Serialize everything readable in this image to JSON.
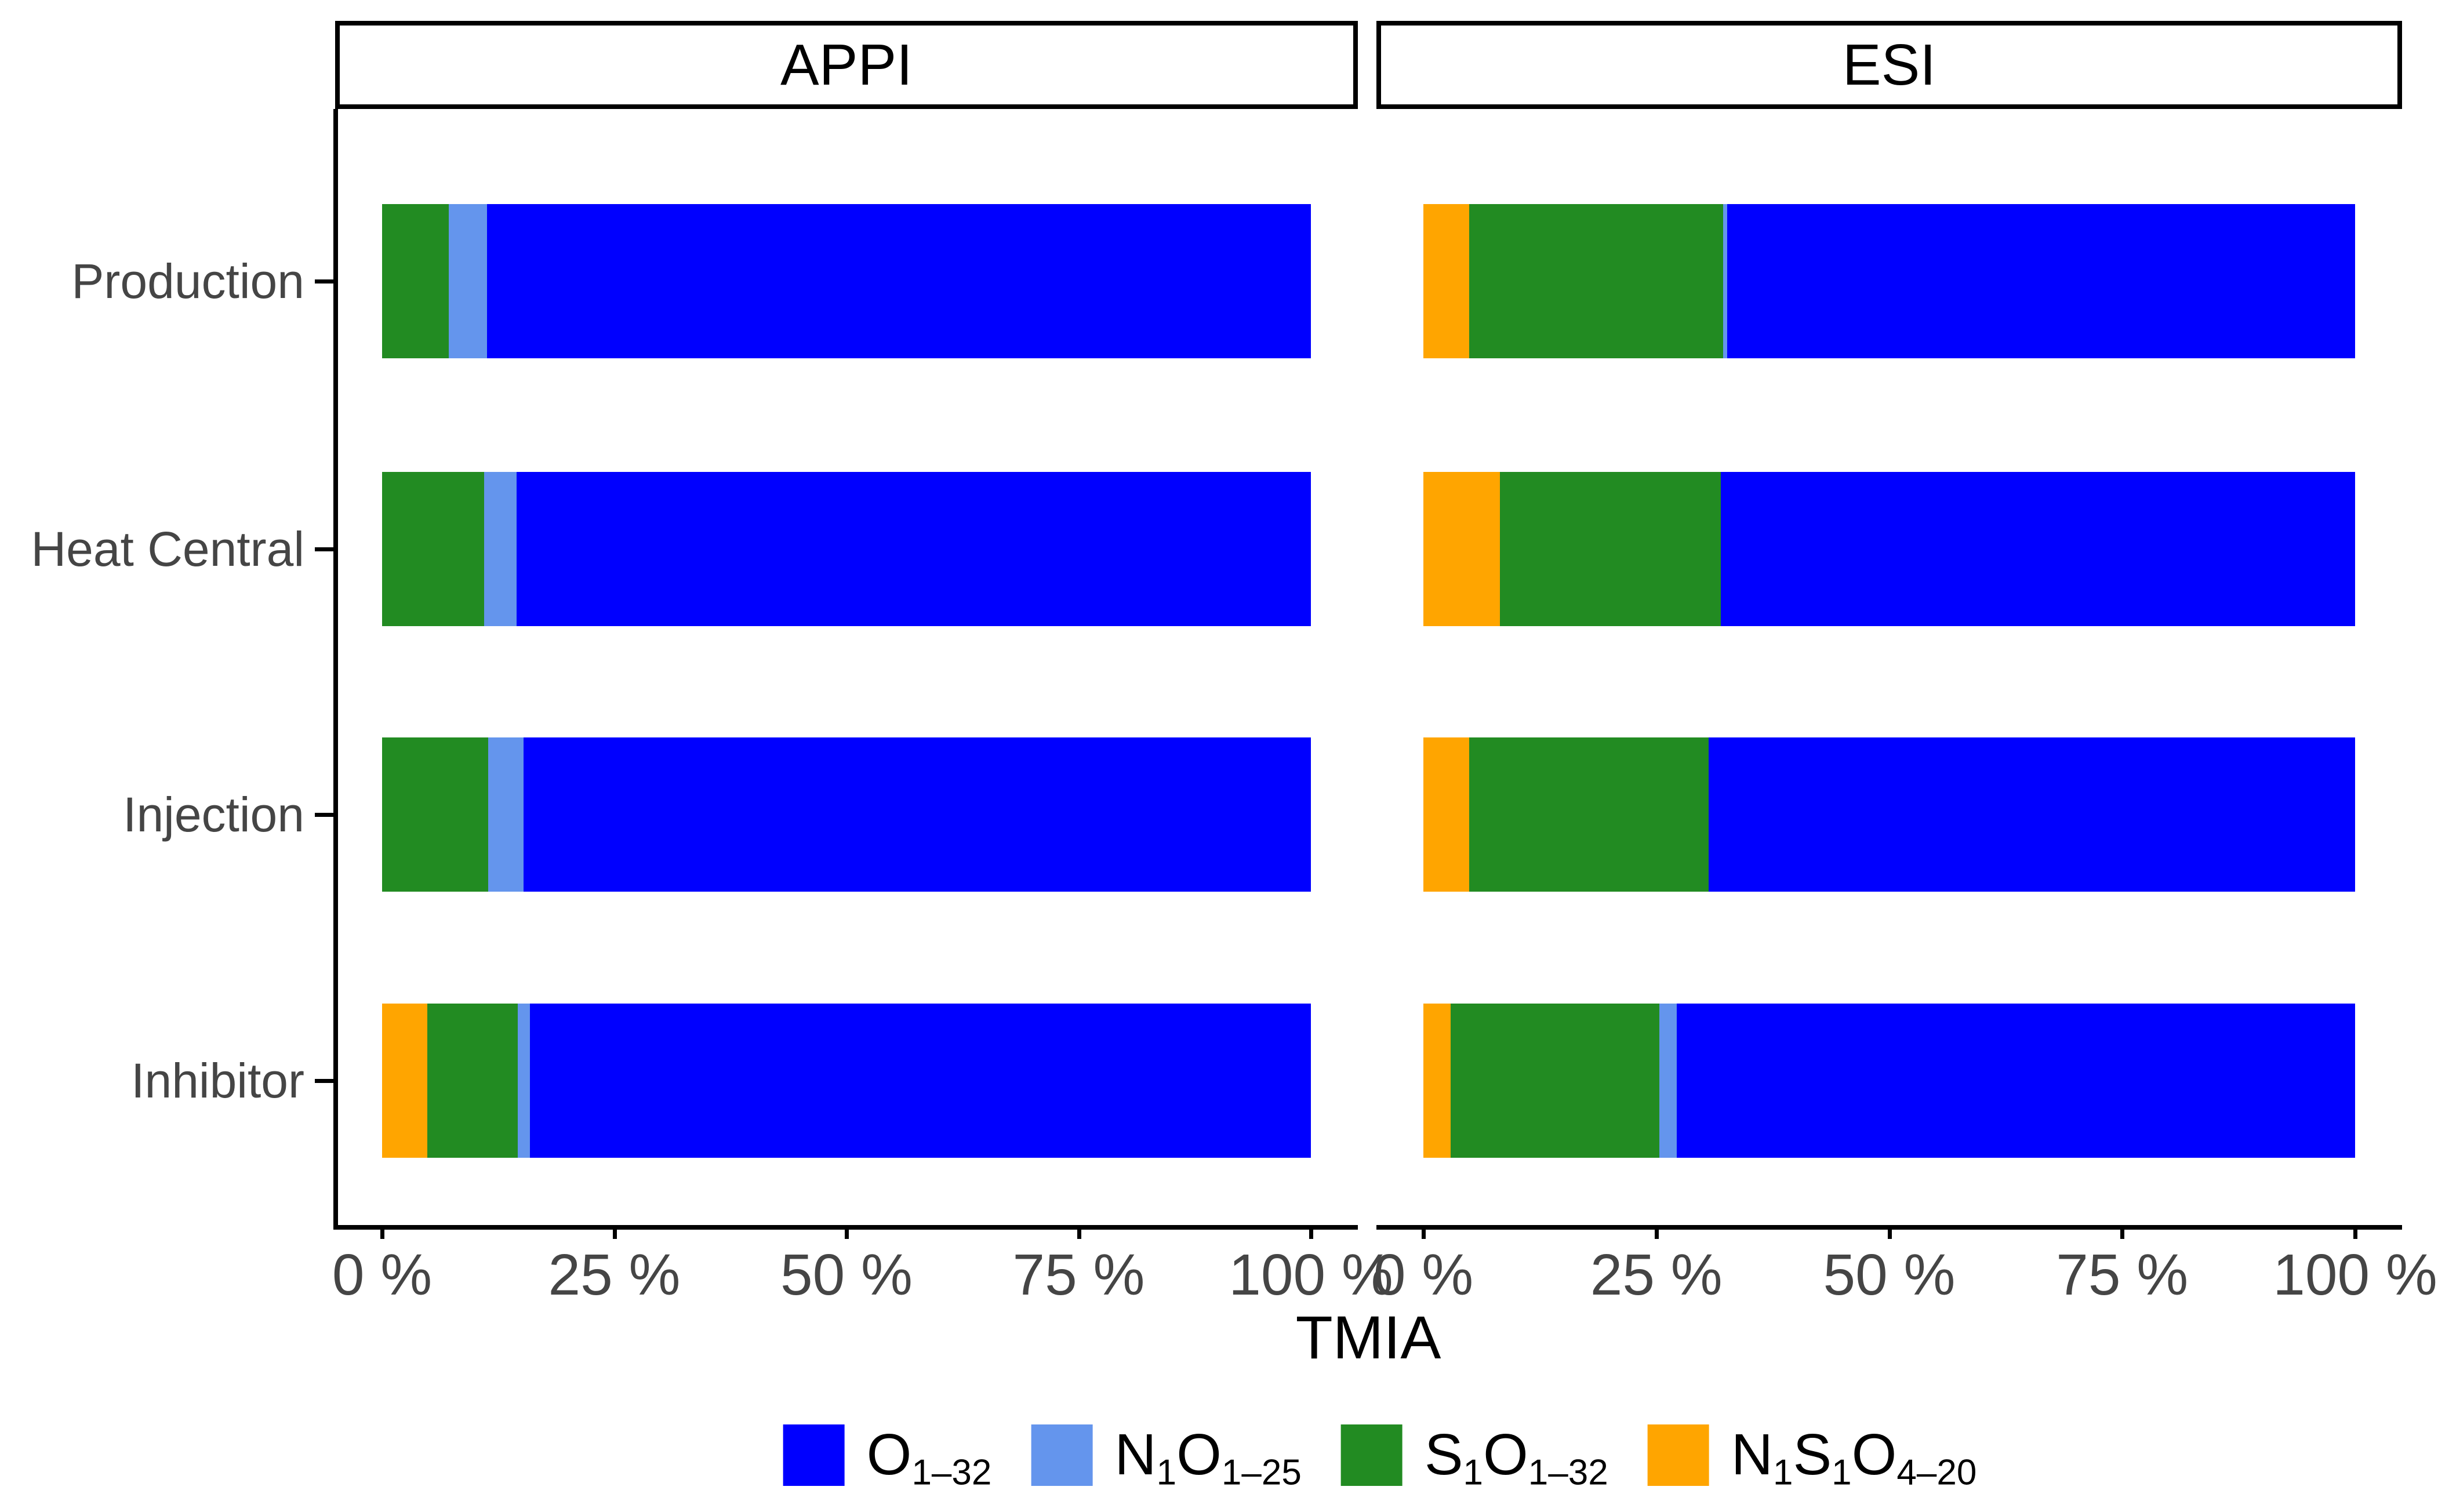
{
  "figure": {
    "xlabel": "TMIA",
    "facets": [
      "APPI",
      "ESI"
    ],
    "categories": [
      "Production",
      "Heat Central",
      "Injection",
      "Inhibitor"
    ],
    "x_tick_labels": [
      "0 %",
      "25 %",
      "50 %",
      "75 %",
      "100 %"
    ],
    "x_tick_values": [
      0,
      25,
      50,
      75,
      100
    ],
    "colors": {
      "O1-32": "#0000FF",
      "N1O1-25": "#6495ED",
      "S1O1-32": "#228B22",
      "N1S1O4-20": "#FFA500",
      "axis_text": "#454545",
      "axis_line": "#000000"
    },
    "legend": [
      {
        "series": "O1-32",
        "color": "#0000FF",
        "label_parts": [
          [
            "t",
            "O"
          ],
          [
            "s",
            "1–32"
          ]
        ]
      },
      {
        "series": "N1O1-25",
        "color": "#6495ED",
        "label_parts": [
          [
            "t",
            "N"
          ],
          [
            "s",
            "1"
          ],
          [
            "t",
            "O"
          ],
          [
            "s",
            "1–25"
          ]
        ]
      },
      {
        "series": "S1O1-32",
        "color": "#228B22",
        "label_parts": [
          [
            "t",
            "S"
          ],
          [
            "s",
            "1"
          ],
          [
            "t",
            "O"
          ],
          [
            "s",
            "1–32"
          ]
        ]
      },
      {
        "series": "N1S1O4-20",
        "color": "#FFA500",
        "label_parts": [
          [
            "t",
            "N"
          ],
          [
            "s",
            "1"
          ],
          [
            "t",
            "S"
          ],
          [
            "s",
            "1"
          ],
          [
            "t",
            "O"
          ],
          [
            "s",
            "4–20"
          ]
        ]
      }
    ]
  },
  "chart_data": {
    "type": "bar",
    "orientation": "horizontal",
    "stacked": true,
    "unit": "percent",
    "xlim": [
      0,
      100
    ],
    "xlabel": "TMIA",
    "categories": [
      "Production",
      "Heat Central",
      "Injection",
      "Inhibitor"
    ],
    "stack_draw_order": [
      "N1S1O4-20",
      "S1O1-32",
      "N1O1-25",
      "O1-32"
    ],
    "facets": [
      {
        "name": "APPI",
        "series": [
          {
            "name": "O1-32",
            "values": [
              88.7,
              85.5,
              84.8,
              84.1
            ]
          },
          {
            "name": "N1O1-25",
            "values": [
              4.1,
              3.5,
              3.8,
              1.3
            ]
          },
          {
            "name": "S1O1-32",
            "values": [
              7.2,
              11.0,
              11.4,
              9.7
            ]
          },
          {
            "name": "N1S1O4-20",
            "values": [
              0.0,
              0.0,
              0.0,
              4.9
            ]
          }
        ]
      },
      {
        "name": "ESI",
        "series": [
          {
            "name": "O1-32",
            "values": [
              67.4,
              68.1,
              69.4,
              72.8
            ]
          },
          {
            "name": "N1O1-25",
            "values": [
              0.4,
              0.0,
              0.0,
              1.9
            ]
          },
          {
            "name": "S1O1-32",
            "values": [
              27.3,
              23.7,
              25.7,
              22.4
            ]
          },
          {
            "name": "N1S1O4-20",
            "values": [
              4.9,
              8.2,
              4.9,
              2.9
            ]
          }
        ]
      }
    ]
  }
}
